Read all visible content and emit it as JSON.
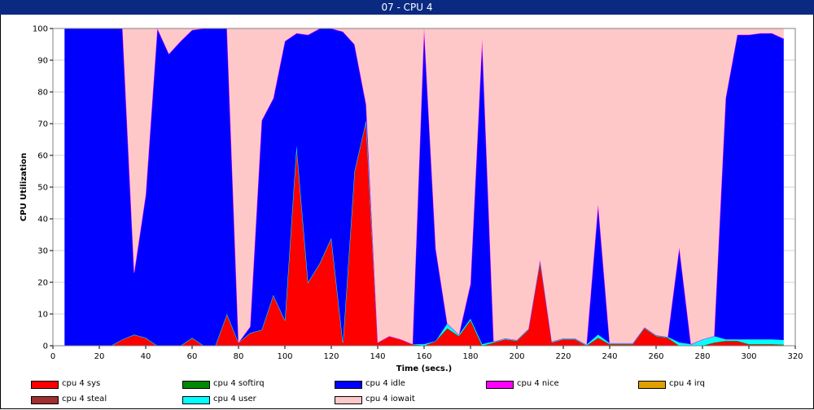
{
  "window": {
    "title": "07 - CPU 4"
  },
  "chart_data": {
    "type": "area",
    "title": "07 - CPU 4",
    "xlabel": "Time (secs.)",
    "ylabel": "CPU Utilization",
    "xlim": [
      0,
      320
    ],
    "ylim": [
      0,
      100
    ],
    "xticks": [
      0,
      20,
      40,
      60,
      80,
      100,
      120,
      140,
      160,
      180,
      200,
      220,
      240,
      260,
      280,
      300,
      320
    ],
    "yticks": [
      0,
      10,
      20,
      30,
      40,
      50,
      60,
      70,
      80,
      90,
      100
    ],
    "grid": true,
    "stacked": true,
    "x": [
      5,
      10,
      15,
      20,
      25,
      30,
      35,
      40,
      45,
      50,
      55,
      60,
      65,
      70,
      75,
      80,
      85,
      90,
      95,
      100,
      105,
      110,
      115,
      120,
      125,
      130,
      135,
      140,
      145,
      150,
      155,
      160,
      165,
      170,
      175,
      180,
      185,
      190,
      195,
      200,
      205,
      210,
      215,
      220,
      225,
      230,
      235,
      240,
      245,
      250,
      255,
      260,
      265,
      270,
      275,
      280,
      285,
      290,
      295,
      300,
      305,
      310,
      315
    ],
    "series": [
      {
        "name": "cpu 4 sys",
        "color": "#ff0000",
        "values": [
          0,
          0,
          0,
          0,
          0,
          2,
          3.5,
          2.5,
          0,
          0,
          0,
          2.5,
          0,
          0,
          10,
          1,
          4,
          5,
          16,
          8,
          63,
          20,
          26,
          34,
          1,
          55,
          71,
          1,
          3,
          2,
          0.5,
          0,
          1.5,
          5.5,
          3,
          8,
          0,
          1,
          2,
          1.5,
          5,
          26,
          1,
          2,
          2,
          0,
          2.5,
          0.5,
          0.5,
          0.5,
          5.5,
          3,
          2.5,
          0,
          0,
          0,
          1,
          1.5,
          1.5,
          0.5,
          0.5,
          0.5,
          0.3
        ]
      },
      {
        "name": "cpu 4 softirq",
        "color": "#008800",
        "values": [
          0,
          0,
          0,
          0,
          0,
          0,
          0,
          0,
          0,
          0,
          0,
          0,
          0,
          0,
          0,
          0,
          0,
          0,
          0,
          0,
          0,
          0,
          0,
          0,
          0,
          0,
          0,
          0,
          0,
          0,
          0,
          0,
          0,
          0,
          0,
          0,
          0,
          0,
          0,
          0,
          0,
          0,
          0,
          0,
          0,
          0,
          0,
          0,
          0,
          0,
          0,
          0,
          0,
          0,
          0,
          0,
          0,
          0,
          0,
          0,
          0,
          0,
          0
        ]
      },
      {
        "name": "cpu 4 user",
        "color": "#00ffff",
        "values": [
          0,
          0,
          0,
          0,
          0,
          0,
          0,
          0,
          0,
          0,
          0,
          0,
          0,
          0,
          0,
          0,
          0,
          0,
          0,
          0,
          0,
          0,
          0,
          0,
          0,
          0,
          0,
          0,
          0,
          0,
          0,
          0.5,
          0,
          1.5,
          0.5,
          0.5,
          0.5,
          0.3,
          0.3,
          0.3,
          0.3,
          1,
          0.3,
          0.3,
          0.3,
          0.3,
          1,
          0.3,
          0.3,
          0.3,
          0.3,
          0.3,
          0.3,
          1,
          0.5,
          2,
          2,
          0.5,
          0.5,
          1.5,
          1.5,
          1.5,
          1.5
        ]
      },
      {
        "name": "cpu 4 idle",
        "color": "#0000ff",
        "values": [
          100,
          100,
          100,
          100,
          100,
          98,
          19.5,
          45,
          100,
          92,
          96,
          97,
          100,
          100,
          90,
          0,
          2,
          66,
          62,
          88,
          35.5,
          78,
          74,
          66,
          98,
          40,
          5,
          0,
          0,
          0,
          0,
          99.5,
          29,
          0,
          0,
          11,
          96,
          0,
          0,
          0,
          0,
          0,
          0,
          0,
          0,
          0,
          41,
          0,
          0,
          0,
          0,
          0,
          0,
          30,
          0,
          0,
          0,
          76,
          96,
          96,
          96.5,
          96.5,
          95
        ]
      },
      {
        "name": "cpu 4 nice",
        "color": "#ff00ff",
        "values": [
          0,
          0,
          0,
          0,
          0,
          0,
          0,
          0,
          0,
          0,
          0,
          0,
          0,
          0,
          0,
          0,
          0,
          0,
          0,
          0,
          0,
          0,
          0,
          0,
          0,
          0,
          0,
          0,
          0,
          0,
          0,
          0,
          0,
          0,
          0,
          0,
          0,
          0,
          0,
          0,
          0,
          0,
          0,
          0,
          0,
          0,
          0,
          0,
          0,
          0,
          0,
          0,
          0,
          0,
          0,
          0,
          0,
          0,
          0,
          0,
          0,
          0,
          0
        ]
      },
      {
        "name": "cpu 4 iowait",
        "color": "#ffc8c8",
        "values": [
          0,
          0,
          0,
          0,
          0,
          0,
          77,
          52.5,
          0,
          8,
          4,
          0.5,
          0,
          0,
          0,
          99,
          94,
          29,
          22,
          4,
          1.5,
          2,
          0,
          0,
          1,
          5,
          24,
          99,
          97,
          98,
          99.5,
          0,
          69.5,
          93,
          96.5,
          80.5,
          3.5,
          98.7,
          97.7,
          98.2,
          94.7,
          73,
          98.7,
          97.7,
          97.7,
          99.7,
          55.5,
          99.2,
          99.2,
          99.2,
          94.2,
          96.7,
          97.2,
          69,
          99.5,
          98,
          97,
          22,
          2,
          2,
          1.5,
          1.5,
          3.2
        ]
      },
      {
        "name": "cpu 4 irq",
        "color": "#e0a000",
        "values": [
          0,
          0,
          0,
          0,
          0,
          0,
          0,
          0,
          0,
          0,
          0,
          0,
          0,
          0,
          0,
          0,
          0,
          0,
          0,
          0,
          0,
          0,
          0,
          0,
          0,
          0,
          0,
          0,
          0,
          0,
          0,
          0,
          0,
          0,
          0,
          0,
          0,
          0,
          0,
          0,
          0,
          0,
          0,
          0,
          0,
          0,
          0,
          0,
          0,
          0,
          0,
          0,
          0,
          0,
          0,
          0,
          0,
          0,
          0,
          0,
          0,
          0,
          0
        ]
      },
      {
        "name": "cpu 4 steal",
        "color": "#a03030",
        "values": [
          0,
          0,
          0,
          0,
          0,
          0,
          0,
          0,
          0,
          0,
          0,
          0,
          0,
          0,
          0,
          0,
          0,
          0,
          0,
          0,
          0,
          0,
          0,
          0,
          0,
          0,
          0,
          0,
          0,
          0,
          0,
          0,
          0,
          0,
          0,
          0,
          0,
          0,
          0,
          0,
          0,
          0,
          0,
          0,
          0,
          0,
          0,
          0,
          0,
          0,
          0,
          0,
          0,
          0,
          0,
          0,
          0,
          0,
          0,
          0,
          0,
          0,
          0
        ]
      }
    ],
    "legend": [
      {
        "label": "cpu 4 sys",
        "color": "#ff0000"
      },
      {
        "label": "cpu 4 softirq",
        "color": "#008800"
      },
      {
        "label": "cpu 4 idle",
        "color": "#0000ff"
      },
      {
        "label": "cpu 4 nice",
        "color": "#ff00ff"
      },
      {
        "label": "cpu 4 irq",
        "color": "#e0a000"
      },
      {
        "label": "cpu 4 steal",
        "color": "#a03030"
      },
      {
        "label": "cpu 4 user",
        "color": "#00ffff"
      },
      {
        "label": "cpu 4 iowait",
        "color": "#ffc8c8"
      }
    ],
    "legend_position": "bottom"
  }
}
